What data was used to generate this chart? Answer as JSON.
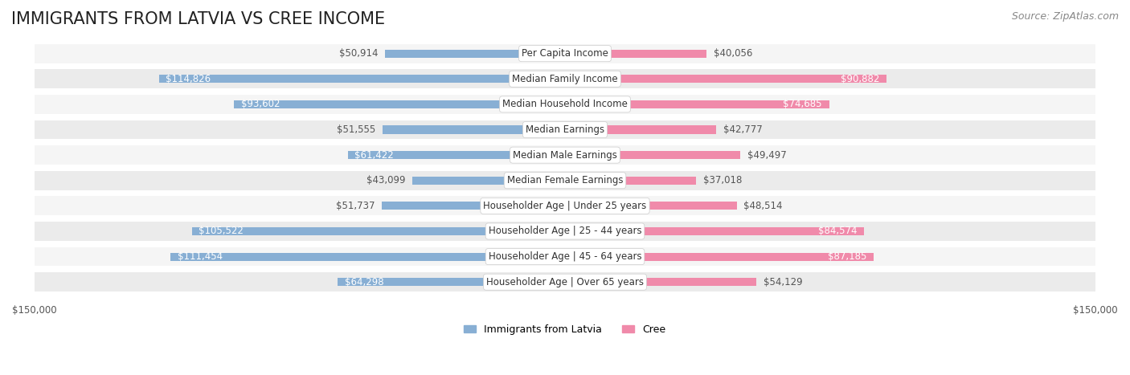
{
  "title": "IMMIGRANTS FROM LATVIA VS CREE INCOME",
  "source": "Source: ZipAtlas.com",
  "categories": [
    "Per Capita Income",
    "Median Family Income",
    "Median Household Income",
    "Median Earnings",
    "Median Male Earnings",
    "Median Female Earnings",
    "Householder Age | Under 25 years",
    "Householder Age | 25 - 44 years",
    "Householder Age | 45 - 64 years",
    "Householder Age | Over 65 years"
  ],
  "latvia_values": [
    50914,
    114826,
    93602,
    51555,
    61422,
    43099,
    51737,
    105522,
    111454,
    64298
  ],
  "cree_values": [
    40056,
    90882,
    74685,
    42777,
    49497,
    37018,
    48514,
    84574,
    87185,
    54129
  ],
  "latvia_color": "#88afd4",
  "cree_color": "#f08aaa",
  "latvia_label_color_dark": "#555555",
  "latvia_label_color_light": "#ffffff",
  "cree_label_color_dark": "#555555",
  "cree_label_color_light": "#ffffff",
  "x_max": 150000,
  "background_color": "#ffffff",
  "row_bg_color": "#f0f0f0",
  "row_alt_color": "#e8e8e8",
  "label_box_color": "#ffffff",
  "label_box_edge_color": "#cccccc",
  "title_fontsize": 15,
  "source_fontsize": 9,
  "bar_label_fontsize": 8.5,
  "category_fontsize": 8.5,
  "axis_label_fontsize": 8.5,
  "legend_fontsize": 9
}
